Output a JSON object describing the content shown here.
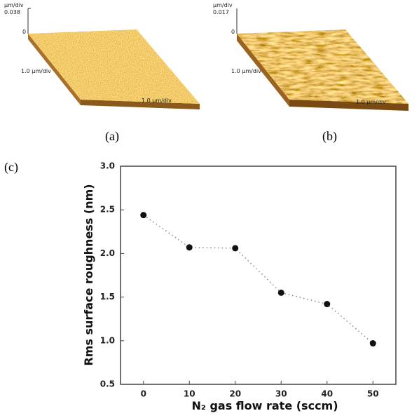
{
  "panels": {
    "a": {
      "label": "(a)",
      "z_unit": "µm/div",
      "z_max": "0.038",
      "z_zero": "0",
      "y_scale": "1.0 µm/div",
      "x_scale": "1.0 µm/div"
    },
    "b": {
      "label": "(b)",
      "z_unit": "µm/div",
      "z_max": "0.017",
      "z_zero": "0",
      "y_scale": "1.0 µm/div",
      "x_scale": "1.0 µm/div"
    },
    "c": {
      "label": "(c)"
    }
  },
  "chart_data": {
    "type": "line",
    "x_label": "N₂ gas flow rate (sccm)",
    "y_label": "Rms surface roughness (nm)",
    "x": [
      0,
      10,
      20,
      30,
      40,
      50
    ],
    "series": [
      {
        "values": [
          2.44,
          2.07,
          2.06,
          1.55,
          1.42,
          0.97
        ],
        "color": "#111111"
      }
    ],
    "xlim": [
      -5,
      55
    ],
    "xticks": [
      0,
      10,
      20,
      30,
      40,
      50
    ],
    "ylim": [
      0.5,
      3.0
    ],
    "yticks": [
      0.5,
      {
        "value": 1.0,
        "label": "1.0"
      },
      1.5,
      {
        "value": 2.0,
        "label": "2.0"
      },
      2.5,
      {
        "value": 3.0,
        "label": "3.0"
      }
    ],
    "grid": false
  }
}
